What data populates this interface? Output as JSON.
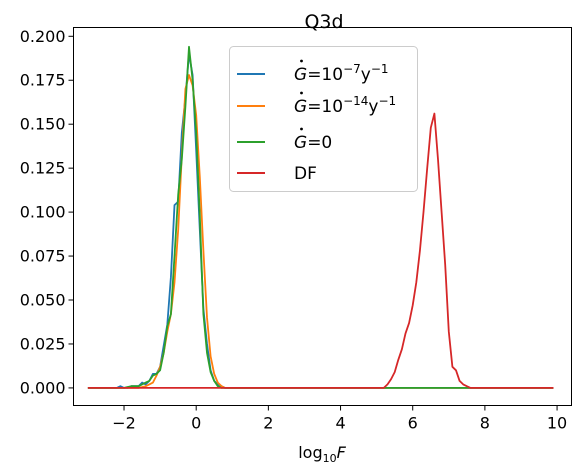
{
  "chart_data": {
    "type": "line",
    "title": "Q3d",
    "xlabel": "log₁₀F",
    "ylabel": "",
    "xlim": [
      -3.4,
      10.4
    ],
    "ylim": [
      -0.01,
      0.205
    ],
    "xticks": [
      -2,
      0,
      2,
      4,
      6,
      8,
      10
    ],
    "xtick_labels": [
      "−2",
      "0",
      "2",
      "4",
      "6",
      "8",
      "10"
    ],
    "yticks": [
      0.0,
      0.025,
      0.05,
      0.075,
      0.1,
      0.125,
      0.15,
      0.175,
      0.2
    ],
    "ytick_labels": [
      "0.000",
      "0.025",
      "0.050",
      "0.075",
      "0.100",
      "0.125",
      "0.150",
      "0.175",
      "0.200"
    ],
    "grid": false,
    "legend_position": "top-center",
    "series": [
      {
        "name": "Ġ=10⁻⁷y⁻¹",
        "label_parts": {
          "base": "=10",
          "exp": "−7",
          "unit": "y",
          "unit_exp": "−1"
        },
        "color": "#1f77b4",
        "x": [
          -3.0,
          -2.2,
          -2.1,
          -2.0,
          -1.9,
          -1.8,
          -1.7,
          -1.6,
          -1.5,
          -1.4,
          -1.3,
          -1.2,
          -1.1,
          -1.0,
          -0.9,
          -0.8,
          -0.7,
          -0.6,
          -0.5,
          -0.4,
          -0.3,
          -0.2,
          -0.1,
          0.0,
          0.1,
          0.2,
          0.3,
          0.4,
          0.5,
          0.6,
          0.7,
          0.8,
          0.9,
          1.0,
          1.5,
          2.0,
          3.0,
          4.0,
          5.0,
          6.0,
          7.0,
          8.0,
          9.0,
          9.9
        ],
        "y": [
          0.0,
          0.0,
          0.001,
          0.0,
          0.0,
          0.001,
          0.001,
          0.001,
          0.003,
          0.002,
          0.004,
          0.008,
          0.008,
          0.012,
          0.024,
          0.036,
          0.063,
          0.104,
          0.106,
          0.145,
          0.165,
          0.19,
          0.178,
          0.135,
          0.09,
          0.045,
          0.025,
          0.01,
          0.004,
          0.002,
          0.001,
          0.0,
          0.0,
          0.0,
          0.0,
          0.0,
          0.0,
          0.0,
          0.0,
          0.0,
          0.0,
          0.0,
          0.0,
          0.0
        ]
      },
      {
        "name": "Ġ=10⁻¹⁴y⁻¹",
        "label_parts": {
          "base": "=10",
          "exp": "−14",
          "unit": "y",
          "unit_exp": "−1"
        },
        "color": "#ff7f0e",
        "x": [
          -3.0,
          -2.0,
          -1.8,
          -1.6,
          -1.4,
          -1.3,
          -1.2,
          -1.1,
          -1.0,
          -0.9,
          -0.8,
          -0.7,
          -0.6,
          -0.5,
          -0.4,
          -0.3,
          -0.2,
          -0.1,
          0.0,
          0.1,
          0.2,
          0.3,
          0.4,
          0.5,
          0.6,
          0.7,
          0.8,
          0.9,
          1.0,
          2.0,
          4.0,
          6.0,
          8.0,
          9.9
        ],
        "y": [
          0.0,
          0.0,
          0.0,
          0.0,
          0.001,
          0.002,
          0.003,
          0.007,
          0.012,
          0.02,
          0.032,
          0.042,
          0.06,
          0.09,
          0.132,
          0.17,
          0.178,
          0.172,
          0.155,
          0.12,
          0.078,
          0.04,
          0.018,
          0.008,
          0.003,
          0.001,
          0.0,
          0.0,
          0.0,
          0.0,
          0.0,
          0.0,
          0.0,
          0.0
        ]
      },
      {
        "name": "Ġ=0",
        "label_parts": {
          "base": "=0",
          "exp": "",
          "unit": "",
          "unit_exp": ""
        },
        "color": "#2ca02c",
        "x": [
          -3.0,
          -2.0,
          -1.8,
          -1.6,
          -1.5,
          -1.4,
          -1.3,
          -1.2,
          -1.1,
          -1.0,
          -0.9,
          -0.8,
          -0.7,
          -0.6,
          -0.5,
          -0.4,
          -0.3,
          -0.2,
          -0.1,
          0.0,
          0.1,
          0.2,
          0.3,
          0.4,
          0.5,
          0.6,
          0.7,
          0.8,
          1.0,
          2.0,
          4.0,
          6.0,
          8.0,
          9.9
        ],
        "y": [
          0.0,
          0.0,
          0.001,
          0.001,
          0.002,
          0.003,
          0.004,
          0.007,
          0.008,
          0.01,
          0.02,
          0.035,
          0.042,
          0.075,
          0.11,
          0.13,
          0.16,
          0.194,
          0.175,
          0.145,
          0.098,
          0.042,
          0.02,
          0.009,
          0.004,
          0.001,
          0.0,
          0.0,
          0.0,
          0.0,
          0.0,
          0.0,
          0.0,
          0.0
        ]
      },
      {
        "name": "DF",
        "label_parts": {
          "base": "DF",
          "exp": "",
          "unit": "",
          "unit_exp": ""
        },
        "color": "#d62728",
        "x": [
          -3.0,
          0.0,
          2.0,
          4.0,
          5.0,
          5.2,
          5.3,
          5.4,
          5.5,
          5.6,
          5.7,
          5.8,
          5.9,
          6.0,
          6.1,
          6.2,
          6.3,
          6.4,
          6.5,
          6.6,
          6.7,
          6.8,
          6.9,
          7.0,
          7.1,
          7.2,
          7.3,
          7.4,
          7.5,
          7.6,
          7.7,
          7.8,
          8.0,
          9.0,
          9.9
        ],
        "y": [
          0.0,
          0.0,
          0.0,
          0.0,
          0.0,
          0.0,
          0.002,
          0.005,
          0.009,
          0.016,
          0.022,
          0.031,
          0.037,
          0.047,
          0.06,
          0.078,
          0.1,
          0.125,
          0.148,
          0.156,
          0.13,
          0.1,
          0.07,
          0.032,
          0.012,
          0.01,
          0.004,
          0.002,
          0.001,
          0.0,
          0.0,
          0.0,
          0.0,
          0.0,
          0.0
        ]
      }
    ]
  }
}
